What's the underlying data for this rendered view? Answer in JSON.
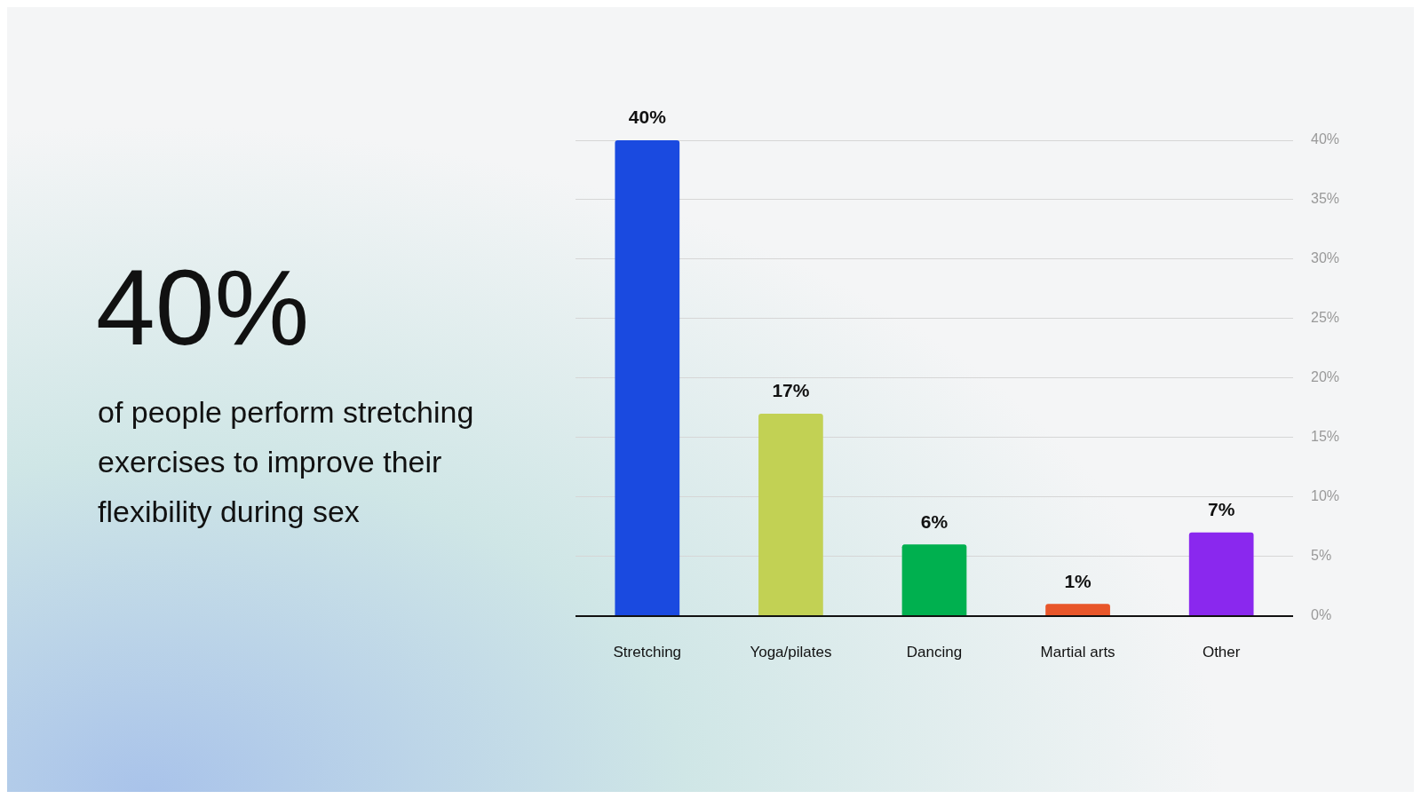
{
  "chart_data": {
    "type": "bar",
    "title": "40%",
    "subtitle": "of people perform stretching exercises to improve their flexibility during sex",
    "categories": [
      "Stretching",
      "Yoga/pilates",
      "Dancing",
      "Martial arts",
      "Other"
    ],
    "values": [
      40,
      17,
      6,
      1,
      7
    ],
    "value_labels": [
      "40%",
      "17%",
      "6%",
      "1%",
      "7%"
    ],
    "colors": [
      "#1a4ae0",
      "#c2d154",
      "#00b04f",
      "#e8562a",
      "#8a28ee"
    ],
    "ylim": [
      0,
      40
    ],
    "yticks": [
      {
        "value": 0,
        "label": "0%"
      },
      {
        "value": 5,
        "label": "5%"
      },
      {
        "value": 10,
        "label": "10%"
      },
      {
        "value": 15,
        "label": "15%"
      },
      {
        "value": 20,
        "label": "20%"
      },
      {
        "value": 25,
        "label": "25%"
      },
      {
        "value": 30,
        "label": "30%"
      },
      {
        "value": 35,
        "label": "35%"
      },
      {
        "value": 40,
        "label": "40%"
      }
    ],
    "grid": "y",
    "legend": false
  }
}
